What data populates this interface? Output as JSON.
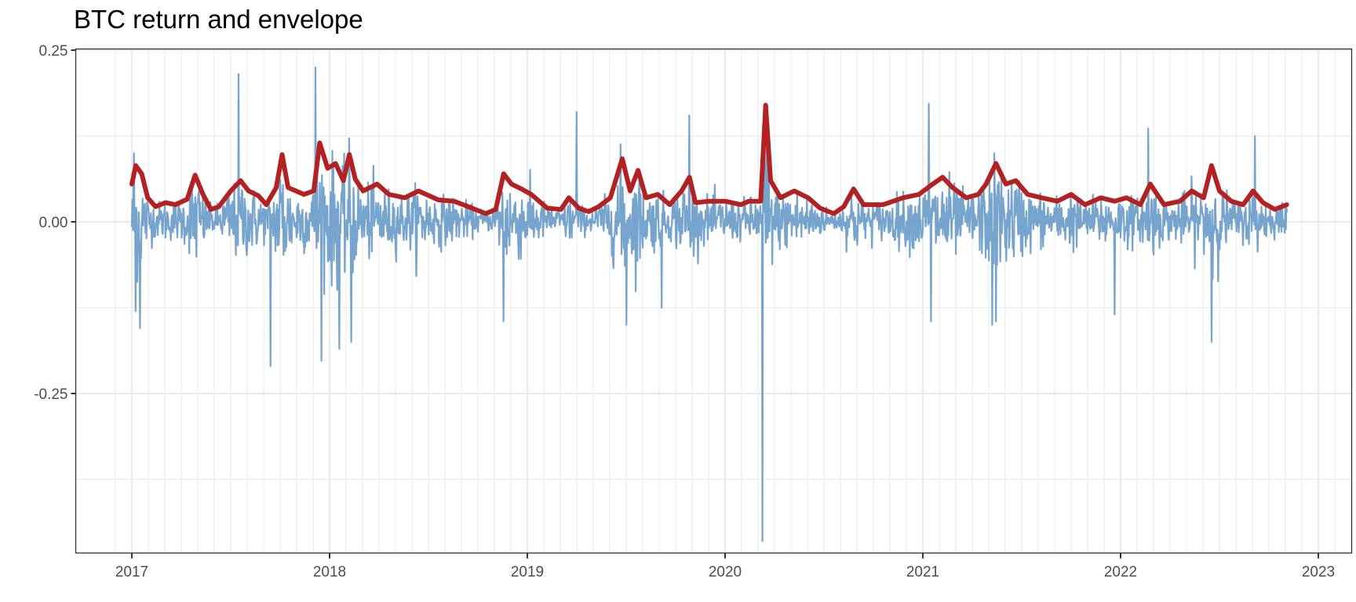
{
  "chart_data": {
    "type": "line",
    "title": "BTC return and envelope",
    "xlabel": "",
    "ylabel": "",
    "x_ticks": [
      "2017",
      "2018",
      "2019",
      "2020",
      "2021",
      "2022",
      "2023"
    ],
    "y_ticks": [
      "0.25",
      "0.00",
      "-0.25"
    ],
    "y_tick_values": [
      0.25,
      0.0,
      -0.25
    ],
    "xlim": [
      2016.94,
      2023.13
    ],
    "ylim": [
      -0.5,
      0.26
    ],
    "grid": true,
    "legend": "none",
    "colors": {
      "return": "#6a9cc9",
      "envelope": "#b22222",
      "grid": "#ebebeb",
      "panel_border": "#333333"
    },
    "series": [
      {
        "name": "return",
        "description": "Daily BTC log return, 2017-01 to 2022-11",
        "x_start": 2017.0,
        "x_end": 2022.84,
        "notable_points": [
          {
            "x": 2017.01,
            "y": 0.1
          },
          {
            "x": 2017.02,
            "y": -0.13
          },
          {
            "x": 2017.04,
            "y": -0.155
          },
          {
            "x": 2017.54,
            "y": 0.215
          },
          {
            "x": 2017.7,
            "y": -0.21
          },
          {
            "x": 2017.93,
            "y": 0.225
          },
          {
            "x": 2018.05,
            "y": -0.185
          },
          {
            "x": 2018.11,
            "y": -0.175
          },
          {
            "x": 2018.88,
            "y": -0.145
          },
          {
            "x": 2019.25,
            "y": 0.16
          },
          {
            "x": 2019.5,
            "y": -0.15
          },
          {
            "x": 2019.82,
            "y": 0.155
          },
          {
            "x": 2019.68,
            "y": -0.125
          },
          {
            "x": 2020.19,
            "y": -0.465
          },
          {
            "x": 2020.21,
            "y": 0.165
          },
          {
            "x": 2021.03,
            "y": 0.172
          },
          {
            "x": 2021.04,
            "y": -0.145
          },
          {
            "x": 2021.35,
            "y": -0.15
          },
          {
            "x": 2021.37,
            "y": -0.145
          },
          {
            "x": 2021.97,
            "y": -0.135
          },
          {
            "x": 2022.14,
            "y": 0.136
          },
          {
            "x": 2022.46,
            "y": -0.175
          },
          {
            "x": 2022.68,
            "y": 0.125
          }
        ]
      },
      {
        "name": "envelope",
        "description": "Smoothed volatility envelope of absolute returns",
        "points": [
          [
            2017.0,
            0.055
          ],
          [
            2017.02,
            0.082
          ],
          [
            2017.05,
            0.07
          ],
          [
            2017.08,
            0.035
          ],
          [
            2017.12,
            0.022
          ],
          [
            2017.17,
            0.028
          ],
          [
            2017.22,
            0.025
          ],
          [
            2017.28,
            0.033
          ],
          [
            2017.32,
            0.068
          ],
          [
            2017.36,
            0.04
          ],
          [
            2017.4,
            0.018
          ],
          [
            2017.44,
            0.022
          ],
          [
            2017.5,
            0.045
          ],
          [
            2017.55,
            0.06
          ],
          [
            2017.59,
            0.045
          ],
          [
            2017.64,
            0.038
          ],
          [
            2017.68,
            0.025
          ],
          [
            2017.73,
            0.05
          ],
          [
            2017.76,
            0.098
          ],
          [
            2017.79,
            0.05
          ],
          [
            2017.83,
            0.045
          ],
          [
            2017.87,
            0.04
          ],
          [
            2017.92,
            0.045
          ],
          [
            2017.95,
            0.115
          ],
          [
            2017.99,
            0.078
          ],
          [
            2018.03,
            0.085
          ],
          [
            2018.07,
            0.06
          ],
          [
            2018.1,
            0.098
          ],
          [
            2018.13,
            0.062
          ],
          [
            2018.17,
            0.045
          ],
          [
            2018.24,
            0.055
          ],
          [
            2018.3,
            0.04
          ],
          [
            2018.38,
            0.035
          ],
          [
            2018.45,
            0.045
          ],
          [
            2018.55,
            0.032
          ],
          [
            2018.63,
            0.03
          ],
          [
            2018.72,
            0.02
          ],
          [
            2018.79,
            0.012
          ],
          [
            2018.84,
            0.018
          ],
          [
            2018.88,
            0.07
          ],
          [
            2018.92,
            0.055
          ],
          [
            2018.97,
            0.048
          ],
          [
            2019.02,
            0.04
          ],
          [
            2019.1,
            0.02
          ],
          [
            2019.17,
            0.018
          ],
          [
            2019.21,
            0.035
          ],
          [
            2019.26,
            0.02
          ],
          [
            2019.31,
            0.015
          ],
          [
            2019.36,
            0.022
          ],
          [
            2019.42,
            0.035
          ],
          [
            2019.48,
            0.092
          ],
          [
            2019.52,
            0.045
          ],
          [
            2019.56,
            0.075
          ],
          [
            2019.6,
            0.035
          ],
          [
            2019.66,
            0.04
          ],
          [
            2019.72,
            0.025
          ],
          [
            2019.78,
            0.045
          ],
          [
            2019.82,
            0.065
          ],
          [
            2019.85,
            0.028
          ],
          [
            2019.92,
            0.03
          ],
          [
            2020.0,
            0.03
          ],
          [
            2020.08,
            0.025
          ],
          [
            2020.12,
            0.03
          ],
          [
            2020.18,
            0.03
          ],
          [
            2020.205,
            0.17
          ],
          [
            2020.23,
            0.06
          ],
          [
            2020.28,
            0.035
          ],
          [
            2020.35,
            0.045
          ],
          [
            2020.42,
            0.035
          ],
          [
            2020.48,
            0.02
          ],
          [
            2020.55,
            0.012
          ],
          [
            2020.6,
            0.022
          ],
          [
            2020.65,
            0.048
          ],
          [
            2020.7,
            0.025
          ],
          [
            2020.8,
            0.025
          ],
          [
            2020.9,
            0.035
          ],
          [
            2020.98,
            0.04
          ],
          [
            2021.05,
            0.055
          ],
          [
            2021.1,
            0.065
          ],
          [
            2021.15,
            0.05
          ],
          [
            2021.22,
            0.035
          ],
          [
            2021.28,
            0.04
          ],
          [
            2021.32,
            0.055
          ],
          [
            2021.37,
            0.085
          ],
          [
            2021.42,
            0.055
          ],
          [
            2021.47,
            0.06
          ],
          [
            2021.53,
            0.04
          ],
          [
            2021.6,
            0.035
          ],
          [
            2021.68,
            0.03
          ],
          [
            2021.75,
            0.04
          ],
          [
            2021.82,
            0.025
          ],
          [
            2021.9,
            0.035
          ],
          [
            2021.97,
            0.03
          ],
          [
            2022.03,
            0.035
          ],
          [
            2022.1,
            0.025
          ],
          [
            2022.15,
            0.055
          ],
          [
            2022.22,
            0.025
          ],
          [
            2022.3,
            0.03
          ],
          [
            2022.36,
            0.045
          ],
          [
            2022.42,
            0.035
          ],
          [
            2022.46,
            0.082
          ],
          [
            2022.5,
            0.045
          ],
          [
            2022.56,
            0.03
          ],
          [
            2022.62,
            0.025
          ],
          [
            2022.67,
            0.045
          ],
          [
            2022.72,
            0.028
          ],
          [
            2022.78,
            0.018
          ],
          [
            2022.84,
            0.025
          ]
        ]
      }
    ]
  }
}
